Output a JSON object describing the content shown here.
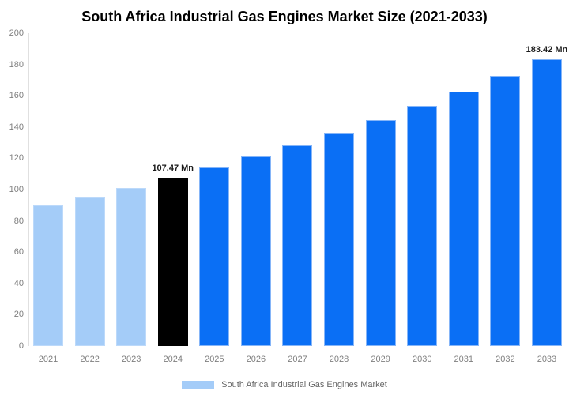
{
  "chart_data": {
    "type": "bar",
    "title": "South Africa Industrial Gas Engines Market Size (2021-2033)",
    "xlabel": "",
    "ylabel": "",
    "ylim": [
      0,
      200
    ],
    "yticks": [
      0,
      20,
      40,
      60,
      80,
      100,
      120,
      140,
      160,
      180,
      200
    ],
    "grid": false,
    "categories": [
      "2021",
      "2022",
      "2023",
      "2024",
      "2025",
      "2026",
      "2027",
      "2028",
      "2029",
      "2030",
      "2031",
      "2032",
      "2033"
    ],
    "values": [
      89.9,
      95.4,
      101.2,
      107.47,
      114.0,
      121.0,
      128.4,
      136.2,
      144.5,
      153.4,
      162.8,
      172.7,
      183.42
    ],
    "bar_colors": [
      "#a4ccf8",
      "#a4ccf8",
      "#a4ccf8",
      "#000000",
      "#0a6ff5",
      "#0a6ff5",
      "#0a6ff5",
      "#0a6ff5",
      "#0a6ff5",
      "#0a6ff5",
      "#0a6ff5",
      "#0a6ff5",
      "#0a6ff5"
    ],
    "bar_border_colors": [
      "#bcd9fa",
      "#bcd9fa",
      "#bcd9fa",
      "#000000",
      "#85b5f8",
      "#85b5f8",
      "#85b5f8",
      "#85b5f8",
      "#85b5f8",
      "#85b5f8",
      "#85b5f8",
      "#85b5f8",
      "#85b5f8"
    ],
    "annotations": [
      {
        "category": "2024",
        "text": "107.47 Mn"
      },
      {
        "category": "2033",
        "text": "183.42 Mn"
      }
    ],
    "legend": {
      "position": "bottom",
      "label": "South Africa Industrial Gas Engines Market",
      "swatch_color": "#a4ccf8"
    }
  },
  "colors": {
    "background": "#ffffff",
    "axis_line": "#e0e0e0",
    "tick_text": "#7f7f7f",
    "annotation_text": "#1a1a1a",
    "legend_text": "#666666",
    "series_light_blue": "#a4ccf8",
    "series_highlight_black": "#000000",
    "series_blue": "#0a6ff5"
  }
}
